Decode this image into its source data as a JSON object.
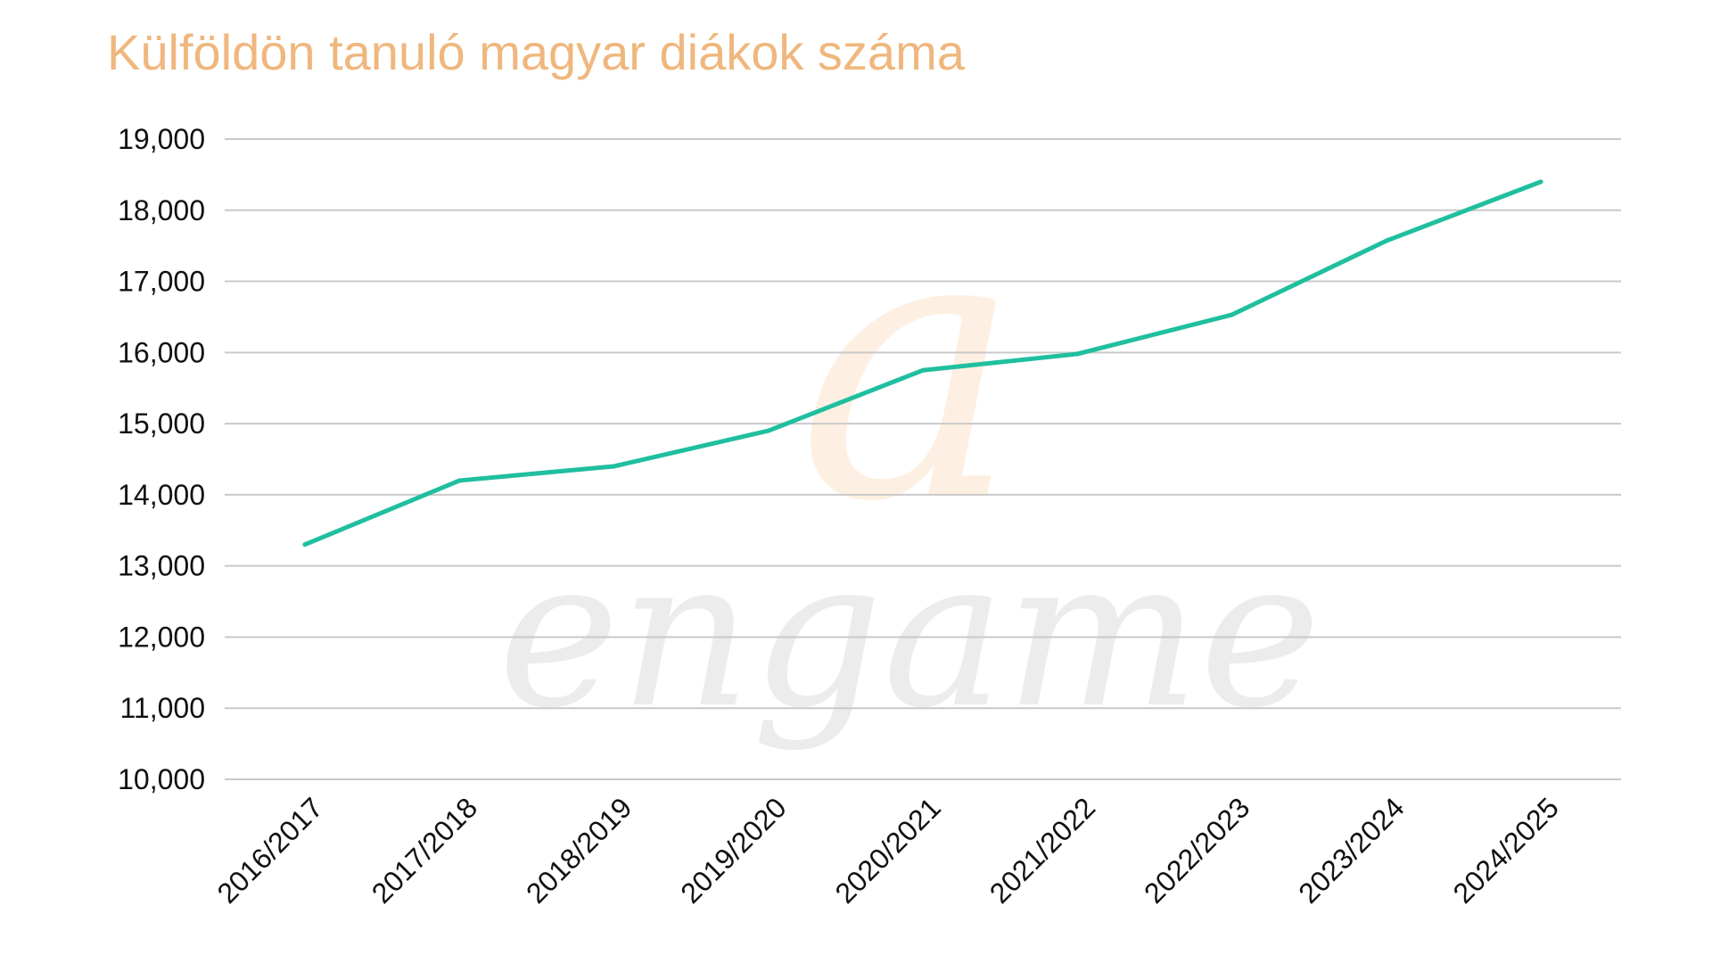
{
  "colors": {
    "title": "#efb77e",
    "line": "#1fbf9f",
    "grid": "#c9c9c9",
    "text": "#111111",
    "watermark_letter": "#fdf0e2",
    "watermark_word": "#ececec"
  },
  "watermark": {
    "letter": "a",
    "word": "engame"
  },
  "chart_data": {
    "type": "line",
    "title": "Külföldön tanuló magyar diákok száma",
    "xlabel": "",
    "ylabel": "",
    "categories": [
      "2016/2017",
      "2017/2018",
      "2018/2019",
      "2019/2020",
      "2020/2021",
      "2021/2022",
      "2022/2023",
      "2023/2024",
      "2024/2025"
    ],
    "series": [
      {
        "values": [
          13300,
          14200,
          14400,
          14900,
          15750,
          15980,
          16530,
          17570,
          18400
        ]
      }
    ],
    "ylim": [
      10000,
      19000
    ],
    "yticks": [
      "10,000",
      "11,000",
      "12,000",
      "13,000",
      "14,000",
      "15,000",
      "16,000",
      "17,000",
      "18,000",
      "19,000"
    ],
    "grid": true,
    "legend": "none"
  }
}
